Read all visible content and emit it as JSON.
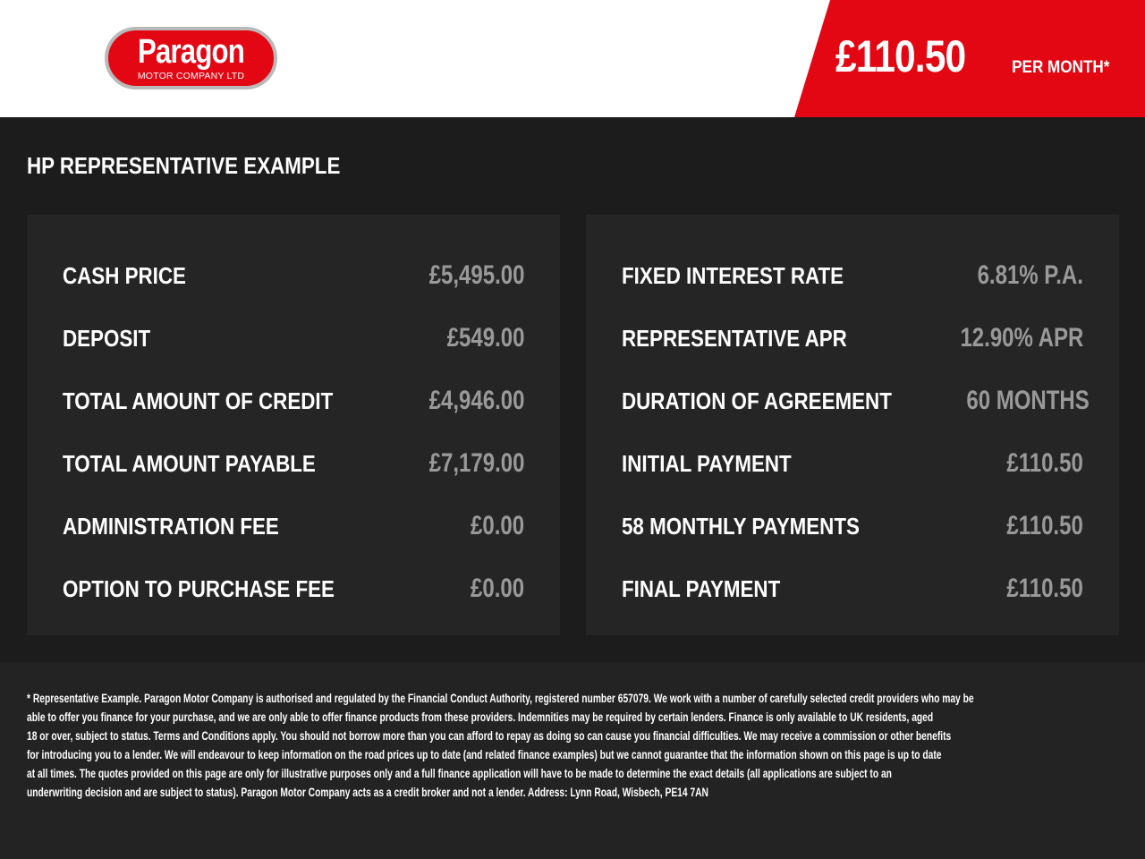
{
  "header": {
    "logo_name": "Paragon",
    "logo_sub": "MOTOR COMPANY LTD",
    "price": "£110.50",
    "per_month": "PER MONTH*",
    "brand_color": "#e30613"
  },
  "title": "HP REPRESENTATIVE EXAMPLE",
  "left": [
    {
      "label": "CASH PRICE",
      "value": "£5,495.00"
    },
    {
      "label": "DEPOSIT",
      "value": "£549.00"
    },
    {
      "label": "TOTAL AMOUNT OF CREDIT",
      "value": "£4,946.00"
    },
    {
      "label": "TOTAL AMOUNT PAYABLE",
      "value": "£7,179.00"
    },
    {
      "label": "ADMINISTRATION FEE",
      "value": "£0.00"
    },
    {
      "label": "OPTION TO PURCHASE FEE",
      "value": "£0.00"
    }
  ],
  "right": [
    {
      "label": "FIXED INTEREST RATE",
      "value": "6.81% P.A."
    },
    {
      "label": "REPRESENTATIVE APR",
      "value": "12.90% APR"
    },
    {
      "label": "DURATION OF AGREEMENT",
      "value": "60 MONTHS"
    },
    {
      "label": "INITIAL PAYMENT",
      "value": "£110.50"
    },
    {
      "label": "58 MONTHLY PAYMENTS",
      "value": "£110.50"
    },
    {
      "label": "FINAL PAYMENT",
      "value": "£110.50"
    }
  ],
  "disclaimer": [
    "* Representative Example. Paragon Motor Company is authorised and regulated by the Financial Conduct Authority, registered number 657079. We work with a number of carefully selected credit providers who may be",
    "able to offer you finance for your purchase, and we are only able to offer finance products from these providers. Indemnities may be required by certain lenders. Finance is only available to UK residents, aged",
    "18 or over, subject to status. Terms and Conditions apply. You should not borrow more than you can afford to repay as doing so can cause you financial difficulties. We may receive a commission or other benefits",
    "for introducing you to a lender. We will endeavour to keep information on the road prices up to date (and related finance examples) but we cannot guarantee that the information shown on this page is up to date",
    "at all times. The quotes provided on this page are only for illustrative purposes only and a full finance application will have to be made to determine the exact details (all applications are subject to an",
    "underwriting decision and are subject to status). Paragon Motor Company acts as a credit broker and not a lender. Address: Lynn Road, Wisbech, PE14 7AN"
  ]
}
